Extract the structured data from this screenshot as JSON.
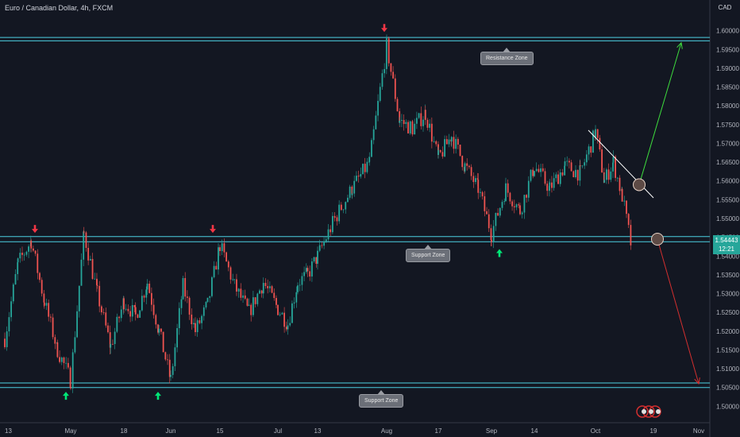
{
  "header": {
    "title": "Euro / Canadian Dollar, 4h, FXCM",
    "currency": "CAD"
  },
  "price_tag": {
    "price": "1.54443",
    "countdown": "12:21"
  },
  "annotations": {
    "resistance_label": "Resistance Zone",
    "support_label_mid": "Support Zone",
    "support_label_bottom": "Support Zone"
  },
  "colors": {
    "background": "#131722",
    "zone_lines": "#4dd0e1",
    "up_candle": "#26a69a",
    "down_candle": "#ef5350",
    "up_arrow": "#00e676",
    "down_arrow": "#f23645",
    "bull_path": "#3ddc3d",
    "bear_path": "#d32f2f",
    "trendline": "#ffffff"
  },
  "chart_data": {
    "type": "candlestick",
    "title": "Euro / Canadian Dollar, 4h, FXCM",
    "y_unit": "CAD",
    "ylim": [
      1.495,
      1.605
    ],
    "y_ticks": [
      "1.60000",
      "1.59500",
      "1.59000",
      "1.58500",
      "1.58000",
      "1.57500",
      "1.57000",
      "1.56500",
      "1.56000",
      "1.55500",
      "1.55000",
      "1.54500",
      "1.54000",
      "1.53500",
      "1.53000",
      "1.52500",
      "1.52000",
      "1.51500",
      "1.51000",
      "1.50500",
      "1.50000"
    ],
    "x_ticks": [
      "13",
      "May",
      "18",
      "Jun",
      "15",
      "Jul",
      "13",
      "Aug",
      "17",
      "Sep",
      "14",
      "Oct",
      "19",
      "Nov"
    ],
    "last_price": 1.54443,
    "resistance_zone": [
      1.5973,
      1.5982
    ],
    "support_zone_mid": [
      1.5438,
      1.5452
    ],
    "support_zone_bottom": [
      1.505,
      1.5062
    ],
    "close_path": [
      {
        "x": "13",
        "y": 1.518
      },
      {
        "x": "13",
        "y": 1.538
      },
      {
        "x": "13",
        "y": 1.544
      },
      {
        "x": "13",
        "y": 1.528
      },
      {
        "x": "13",
        "y": 1.515
      },
      {
        "x": "May",
        "y": 1.507
      },
      {
        "x": "May",
        "y": 1.546
      },
      {
        "x": "May",
        "y": 1.53
      },
      {
        "x": "May",
        "y": 1.516
      },
      {
        "x": "18",
        "y": 1.528
      },
      {
        "x": "18",
        "y": 1.524
      },
      {
        "x": "18",
        "y": 1.533
      },
      {
        "x": "18",
        "y": 1.52
      },
      {
        "x": "Jun",
        "y": 1.507
      },
      {
        "x": "Jun",
        "y": 1.532
      },
      {
        "x": "Jun",
        "y": 1.52
      },
      {
        "x": "Jun",
        "y": 1.527
      },
      {
        "x": "15",
        "y": 1.543
      },
      {
        "x": "15",
        "y": 1.532
      },
      {
        "x": "15",
        "y": 1.525
      },
      {
        "x": "15",
        "y": 1.533
      },
      {
        "x": "Jul",
        "y": 1.526
      },
      {
        "x": "Jul",
        "y": 1.522
      },
      {
        "x": "Jul",
        "y": 1.533
      },
      {
        "x": "Jul",
        "y": 1.535
      },
      {
        "x": "13",
        "y": 1.54
      },
      {
        "x": "13",
        "y": 1.55
      },
      {
        "x": "13",
        "y": 1.558
      },
      {
        "x": "13",
        "y": 1.565
      },
      {
        "x": "Aug",
        "y": 1.596
      },
      {
        "x": "Aug",
        "y": 1.576
      },
      {
        "x": "Aug",
        "y": 1.574
      },
      {
        "x": "Aug",
        "y": 1.578
      },
      {
        "x": "17",
        "y": 1.566
      },
      {
        "x": "17",
        "y": 1.572
      },
      {
        "x": "17",
        "y": 1.564
      },
      {
        "x": "17",
        "y": 1.558
      },
      {
        "x": "Sep",
        "y": 1.546
      },
      {
        "x": "Sep",
        "y": 1.558
      },
      {
        "x": "Sep",
        "y": 1.552
      },
      {
        "x": "14",
        "y": 1.564
      },
      {
        "x": "14",
        "y": 1.558
      },
      {
        "x": "14",
        "y": 1.564
      },
      {
        "x": "14",
        "y": 1.562
      },
      {
        "x": "Oct",
        "y": 1.573
      },
      {
        "x": "Oct",
        "y": 1.56
      },
      {
        "x": "Oct",
        "y": 1.565
      },
      {
        "x": "Oct",
        "y": 1.556
      },
      {
        "x": "Oct",
        "y": 1.543
      }
    ],
    "signals": [
      {
        "type": "down",
        "x": "13",
        "y": 1.547
      },
      {
        "type": "up",
        "x": "May",
        "y": 1.503
      },
      {
        "type": "up",
        "x": "Jun",
        "y": 1.503
      },
      {
        "type": "down",
        "x": "15",
        "y": 1.547
      },
      {
        "type": "down",
        "x": "Aug",
        "y": 1.6005
      },
      {
        "type": "up",
        "x": "Sep",
        "y": 1.541
      }
    ],
    "trendline": [
      {
        "x": "Oct",
        "y": 1.5735
      },
      {
        "x": "19",
        "y": 1.5555
      }
    ],
    "scenarios": [
      {
        "name": "bullish",
        "from": {
          "x": "19",
          "y": 1.559
        },
        "to": {
          "x": "Nov",
          "y": 1.5968
        }
      },
      {
        "name": "bearish",
        "from": {
          "x": "19",
          "y": 1.5445
        },
        "to": {
          "x": "Nov",
          "y": 1.506
        }
      }
    ]
  }
}
